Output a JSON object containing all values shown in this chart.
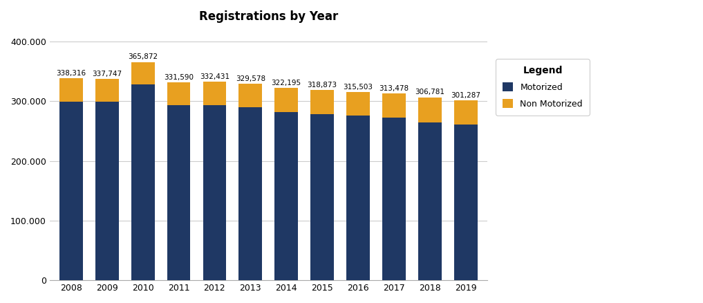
{
  "years": [
    2008,
    2009,
    2010,
    2011,
    2012,
    2013,
    2014,
    2015,
    2016,
    2017,
    2018,
    2019
  ],
  "totals": [
    338316,
    337747,
    365872,
    331590,
    332431,
    329578,
    322195,
    318873,
    315503,
    313478,
    306781,
    301287
  ],
  "motorized": [
    299500,
    298800,
    328000,
    293200,
    293000,
    289800,
    281500,
    278200,
    275800,
    272700,
    264900,
    261000
  ],
  "non_motorized": [
    38816,
    38947,
    37872,
    38390,
    39431,
    39778,
    40695,
    40673,
    39703,
    40778,
    41881,
    40287
  ],
  "motorized_color": "#1F3864",
  "non_motorized_color": "#E8A020",
  "title": "Registrations by Year",
  "title_fontsize": 12,
  "ylim": [
    0,
    420000
  ],
  "yticks": [
    0,
    100000,
    200000,
    300000,
    400000
  ],
  "background_color": "#FFFFFF",
  "plot_bg_color": "#FFFFFF",
  "grid_color": "#CCCCCC",
  "annotation_fontsize": 7.5,
  "legend_title": "Legend",
  "legend_labels": [
    "Motorized",
    "Non Motorized"
  ],
  "bar_width": 0.65
}
